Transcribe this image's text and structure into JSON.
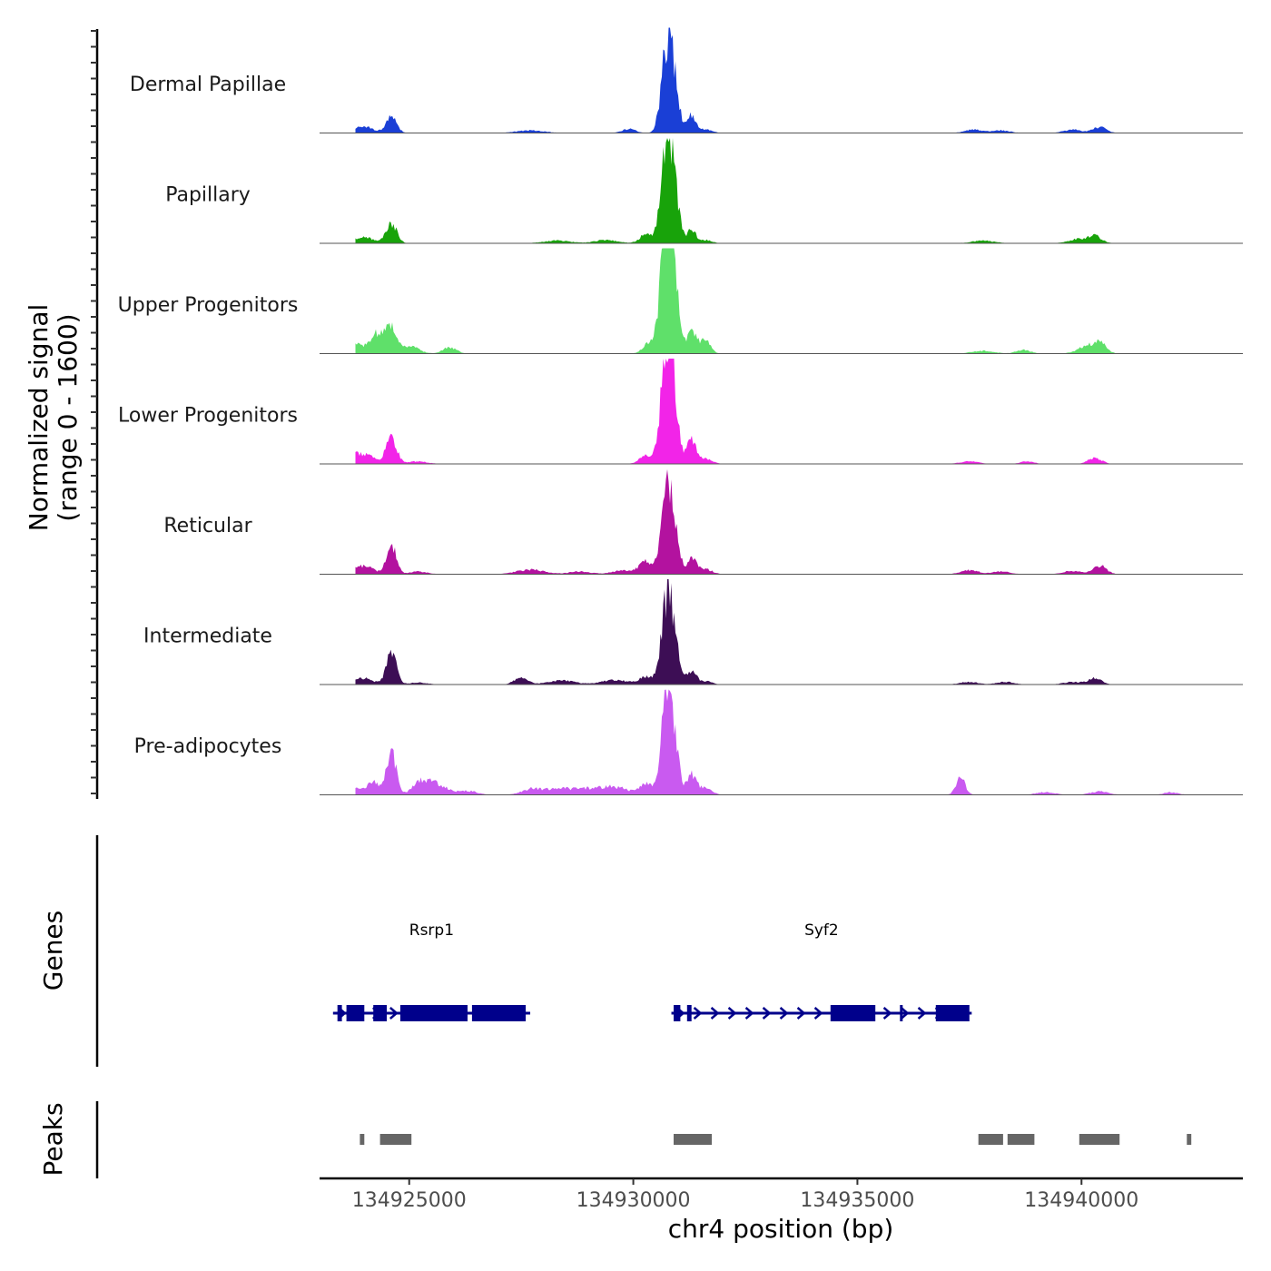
{
  "chart_data": {
    "type": "area",
    "title": "",
    "xlabel": "chr4 position (bp)",
    "ylabel_line1": "Normalized signal",
    "ylabel_line2": "(range 0 - 1600)",
    "ylim": [
      0,
      1600
    ],
    "xlim": [
      134923000,
      134943600
    ],
    "x_ticks": [
      134925000,
      134930000,
      134935000,
      134940000
    ],
    "x_tick_labels": [
      "134925000",
      "134930000",
      "134935000",
      "134940000"
    ],
    "series": [
      {
        "name": "Dermal Papillae",
        "color": "#1a3fd6",
        "peaks": [
          [
            134924000,
            90,
            200
          ],
          [
            134924600,
            230,
            120
          ],
          [
            134923600,
            90,
            120
          ],
          [
            134927700,
            40,
            300
          ],
          [
            134929900,
            60,
            150
          ],
          [
            134930700,
            680,
            110
          ],
          [
            134930850,
            1080,
            130
          ],
          [
            134931300,
            260,
            90
          ],
          [
            134931600,
            60,
            150
          ],
          [
            134937600,
            50,
            200
          ],
          [
            134938200,
            40,
            200
          ],
          [
            134939800,
            50,
            200
          ],
          [
            134940400,
            90,
            150
          ]
        ]
      },
      {
        "name": "Papillary",
        "color": "#18a30a",
        "peaks": [
          [
            134924000,
            90,
            200
          ],
          [
            134924600,
            300,
            120
          ],
          [
            134923600,
            90,
            120
          ],
          [
            134928300,
            40,
            300
          ],
          [
            134929400,
            50,
            250
          ],
          [
            134930300,
            140,
            150
          ],
          [
            134930700,
            880,
            110
          ],
          [
            134930850,
            1200,
            130
          ],
          [
            134931300,
            200,
            90
          ],
          [
            134931600,
            50,
            150
          ],
          [
            134937800,
            40,
            250
          ],
          [
            134939900,
            60,
            200
          ],
          [
            134940300,
            110,
            150
          ]
        ]
      },
      {
        "name": "Upper Progenitors",
        "color": "#5fe06a",
        "peaks": [
          [
            134923800,
            150,
            200
          ],
          [
            134924300,
            300,
            150
          ],
          [
            134924600,
            380,
            110
          ],
          [
            134925000,
            120,
            200
          ],
          [
            134925900,
            100,
            150
          ],
          [
            134930400,
            200,
            150
          ],
          [
            134930700,
            1200,
            110
          ],
          [
            134930850,
            1600,
            130
          ],
          [
            134931300,
            330,
            100
          ],
          [
            134931600,
            200,
            120
          ],
          [
            134937800,
            40,
            250
          ],
          [
            134938700,
            60,
            150
          ],
          [
            134940100,
            100,
            200
          ],
          [
            134940400,
            150,
            150
          ]
        ]
      },
      {
        "name": "Lower Progenitors",
        "color": "#f224e8",
        "peaks": [
          [
            134924000,
            150,
            200
          ],
          [
            134924600,
            400,
            120
          ],
          [
            134923700,
            100,
            120
          ],
          [
            134925200,
            40,
            200
          ],
          [
            134930300,
            130,
            150
          ],
          [
            134930700,
            1100,
            110
          ],
          [
            134930850,
            1330,
            130
          ],
          [
            134931300,
            350,
            100
          ],
          [
            134931600,
            80,
            150
          ],
          [
            134937500,
            40,
            200
          ],
          [
            134938800,
            40,
            150
          ],
          [
            134940300,
            90,
            150
          ]
        ]
      },
      {
        "name": "Reticular",
        "color": "#b3129f",
        "peaks": [
          [
            134924000,
            120,
            200
          ],
          [
            134924600,
            450,
            110
          ],
          [
            134923700,
            80,
            120
          ],
          [
            134925200,
            40,
            200
          ],
          [
            134927700,
            70,
            300
          ],
          [
            134928800,
            40,
            250
          ],
          [
            134929800,
            60,
            250
          ],
          [
            134930300,
            180,
            150
          ],
          [
            134930700,
            650,
            110
          ],
          [
            134930850,
            960,
            130
          ],
          [
            134931300,
            230,
            100
          ],
          [
            134931600,
            80,
            150
          ],
          [
            134937500,
            60,
            200
          ],
          [
            134938200,
            40,
            200
          ],
          [
            134939800,
            50,
            200
          ],
          [
            134940400,
            130,
            150
          ]
        ]
      },
      {
        "name": "Intermediate",
        "color": "#3d0e55",
        "peaks": [
          [
            134924000,
            90,
            200
          ],
          [
            134924600,
            520,
            110
          ],
          [
            134923700,
            50,
            120
          ],
          [
            134925200,
            30,
            200
          ],
          [
            134927500,
            110,
            150
          ],
          [
            134928400,
            60,
            300
          ],
          [
            134929600,
            70,
            300
          ],
          [
            134930300,
            120,
            150
          ],
          [
            134930700,
            720,
            110
          ],
          [
            134930850,
            980,
            130
          ],
          [
            134931300,
            200,
            100
          ],
          [
            134931600,
            50,
            150
          ],
          [
            134937500,
            40,
            200
          ],
          [
            134938300,
            40,
            200
          ],
          [
            134939800,
            40,
            200
          ],
          [
            134940300,
            90,
            150
          ]
        ]
      },
      {
        "name": "Pre-adipocytes",
        "color": "#c95af0",
        "peaks": [
          [
            134923700,
            120,
            200
          ],
          [
            134924200,
            180,
            150
          ],
          [
            134924600,
            650,
            110
          ],
          [
            134925300,
            220,
            200
          ],
          [
            134925700,
            130,
            200
          ],
          [
            134926300,
            60,
            200
          ],
          [
            134927700,
            80,
            200
          ],
          [
            134928300,
            100,
            300
          ],
          [
            134929000,
            80,
            300
          ],
          [
            134929600,
            110,
            300
          ],
          [
            134930300,
            170,
            150
          ],
          [
            134930700,
            900,
            110
          ],
          [
            134930850,
            1130,
            130
          ],
          [
            134931300,
            300,
            100
          ],
          [
            134931600,
            100,
            150
          ],
          [
            134937300,
            260,
            100
          ],
          [
            134939200,
            40,
            200
          ],
          [
            134940400,
            50,
            200
          ],
          [
            134942000,
            40,
            150
          ]
        ]
      }
    ],
    "genes": [
      {
        "name": "Rsrp1",
        "start": 134923300,
        "end": 134927700,
        "strand": "+",
        "exons": [
          [
            134923400,
            134923500
          ],
          [
            134923600,
            134924000
          ],
          [
            134924200,
            134924500
          ],
          [
            134924800,
            134926300
          ],
          [
            134926400,
            134927600
          ]
        ]
      },
      {
        "name": "Syf2",
        "start": 134930850,
        "end": 134937550,
        "strand": "+",
        "exons": [
          [
            134930900,
            134931050
          ],
          [
            134931200,
            134931300
          ],
          [
            134934400,
            134935400
          ],
          [
            134935950,
            134936000
          ],
          [
            134936750,
            134937500
          ]
        ]
      }
    ],
    "peaks_track": [
      [
        134923900,
        134924000
      ],
      [
        134924350,
        134925050
      ],
      [
        134930900,
        134931750
      ],
      [
        134937700,
        134938250
      ],
      [
        134938350,
        134938950
      ],
      [
        134939950,
        134940850
      ],
      [
        134942350,
        134942450
      ]
    ]
  },
  "panels": {
    "genes_label": "Genes",
    "peaks_label": "Peaks"
  },
  "colors": {
    "gene": "#00008b",
    "peak": "#666666",
    "axis": "#000000"
  }
}
